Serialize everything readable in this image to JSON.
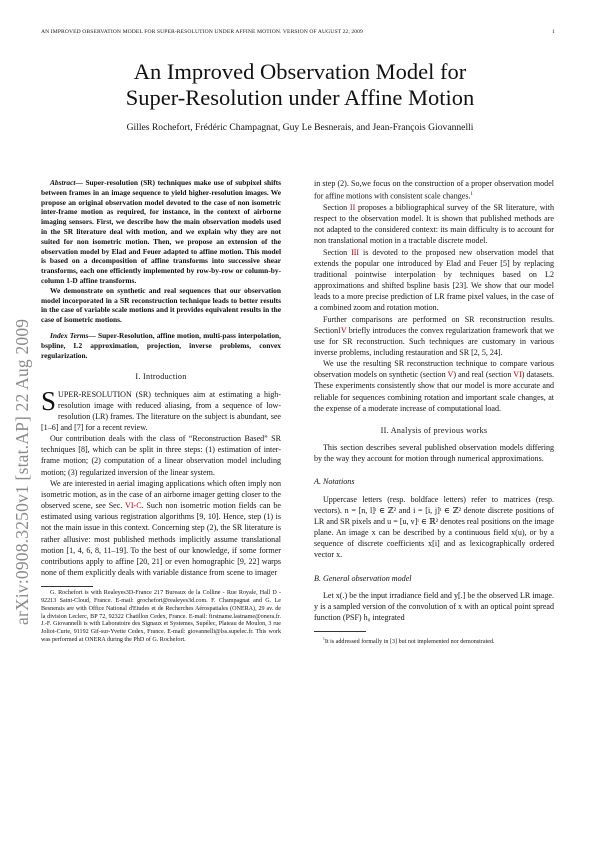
{
  "header": {
    "running_title": "AN IMPROVED OBSERVATION MODEL FOR SUPER-RESOLUTION UNDER AFFINE MOTION. VERSION OF AUGUST 22, 2009",
    "page_number": "1"
  },
  "arxiv_stamp": "arXiv:0908.3250v1  [stat.AP]  22 Aug 2009",
  "title_line1": "An Improved Observation Model for",
  "title_line2": "Super-Resolution under Affine Motion",
  "authors": "Gilles Rochefort, Frédéric Champagnat, Guy Le Besnerais, and Jean-François Giovannelli",
  "abstract": {
    "lead": "Abstract",
    "p1": "— Super-resolution (SR) techniques make use of subpixel shifts between frames in an image sequence to yield higher-resolution images. We propose an original observation model devoted to the case of non isometric inter-frame motion as required, for instance, in the context of airborne imaging sensors. First, we describe how the main observation models used in the SR literature deal with motion, and we explain why they are not suited for non isometric motion. Then, we propose an extension of the observation model by Elad and Feuer adapted to affine motion. This model is based on a decomposition of affine transforms into successive shear transforms, each one efficiently implemented by row-by-row or column-by-column 1-D affine transforms.",
    "p2": "We demonstrate on synthetic and real sequences that our observation model incorporated in a SR reconstruction technique leads to better results in the case of variable scale motions and it provides equivalent results in the case of isometric motions."
  },
  "index_terms": {
    "lead": "Index Terms",
    "text": "— Super-Resolution, affine motion, multi-pass interpolation, bspline, L2 approximation, projection, inverse problems, convex regularization."
  },
  "intro": {
    "heading": "I. Introduction",
    "dropcap": "S",
    "p1": "UPER-RESOLUTION (SR) techniques aim at estimating a high-resolution image with reduced aliasing, from a sequence of low-resolution (LR) frames. The literature on the subject is abundant, see [1–6] and [7] for a recent review.",
    "p2": "Our contribution deals with the class of “Reconstruction Based” SR techniques [8], which can be split in three steps: (1) estimation of inter-frame motion; (2) computation of a linear observation model including motion; (3) regularized inversion of the linear system.",
    "p3a": "We are interested in aerial imaging applications which often imply non isometric motion, as in the case of an airborne imager getting closer to the observed scene, see Sec. ",
    "p3ref": "VI-C",
    "p3b": ". Such non isometric motion fields can be estimated using various registration algorithms [9, 10]. Hence, step (1) is not the main issue in this context. Concerning step (2), the SR literature is rather allusive: most published methods implicitly assume translational motion [1, 4, 6, 8, 11–19]. To the best of our knowledge, if some former contributions apply to affine [20, 21] or even homographic [9, 22] warps none of them explicitly deals with variable distance from scene to imager"
  },
  "affiliation": "G. Rochefort is with Realeyes3D-France 217 Bureaux de la Colline - Rue Royale, Hall D - 92213 Saint-Cloud, France. E-mail: grochefort@realeyes3d.com. F. Champagnat and G. Le Besnerais are with Office National d'Etudes et de Recherches Aérospatiales (ONERA), 29 av. de la division Leclerc, BP 72, 92322 Chatillon Cedex, France. E-mail: firstname.lastname@onera.fr. J.-F. Giovannelli is with Laboratoire des Signaux et Systemes, Supélec, Plateau de Moulon, 3 rue Joliot-Curie, 91192 Gif-sur-Yvette Cedex, France. E-mail: giovannelli@lss.supelec.fr. This work was performed at ONERA during the PhD of G. Rochefort.",
  "right": {
    "p1": "in step (2). So,we focus on the construction of a proper observation model for affine motions with consistent scale changes.",
    "footmark": "1",
    "p2a": "Section ",
    "p2ref": "II",
    "p2b": " proposes a bibliographical survey of the SR literature, with respect to the observation model. It is shown that published methods are not adapted to the considered context: its main difficulty is to account for non translational motion in a tractable discrete model.",
    "p3a": "Section ",
    "p3ref": "III",
    "p3b": " is devoted to the proposed new observation model that extends the popular one introduced by Elad and Feuer [5] by replacing traditional pointwise interpolation by techniques based on L2 approximations and shifted bspline basis [23]. We show that our model leads to a more precise prediction of LR frame pixel values, in the case of a combined zoom and rotation motion.",
    "p4a": "Further comparisons are performed on SR reconstruction results. Section",
    "p4ref": "IV",
    "p4b": " briefly introduces the convex regularization framework that we use for SR reconstruction. Such techniques are customary in various inverse problems, including restauration and SR [2, 5, 24].",
    "p5a": "We use the resulting SR reconstruction technique to compare various observation models on synthetic (section ",
    "p5ref1": "V",
    "p5b": ") and real (section ",
    "p5ref2": "VI",
    "p5c": ") datasets. These experiments consistently show that our model is more accurate and reliable for sequences combining rotation and important scale changes, at the expense of a moderate increase of computational load.",
    "section2_heading": "II. Analysis of previous works",
    "p6": "This section describes several published observation models differing by the way they account for motion through numerical approximations.",
    "subA": "A. Notations",
    "p7": "Uppercase letters (resp. boldface letters) refer to matrices (resp. vectors). n = [n, l]ᵗ ∈ ℤ² and i = [i, j]ᵗ ∈ ℤ² denote discrete positions of LR and SR pixels and u = [u, v]ᵗ ∈ ℝ² denotes real positions on the image plane. An image x can be described by a continuous field x(u), or by a sequence of discrete coefficients x[i] and as lexicographically ordered vector x.",
    "subB": "B. General observation model",
    "p8": "Let x(.) be the input irradiance field and y[.] be the observed LR image. y is a sampled version of the convolution of x with an optical point spread function (PSF) h₀ integrated",
    "footnote_mark": "1",
    "footnote": "It is addressed formally in [3] but not implemented nor demonstrated."
  }
}
